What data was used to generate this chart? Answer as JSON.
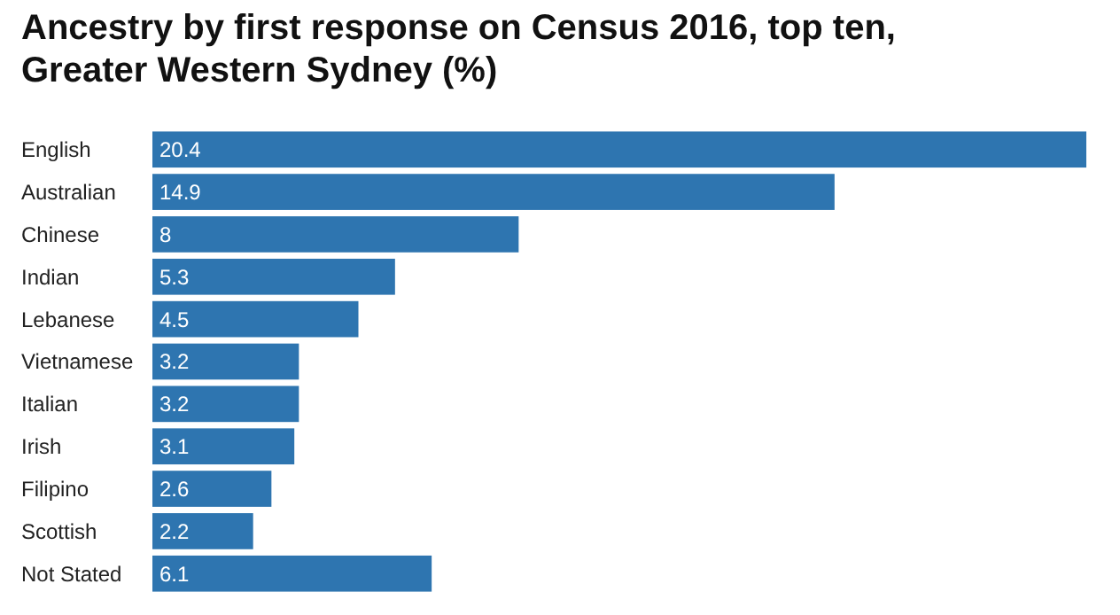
{
  "chart_data": {
    "type": "bar",
    "orientation": "horizontal",
    "title": "Ancestry by first response on Census 2016, top ten, Greater Western Sydney (%)",
    "categories": [
      "English",
      "Australian",
      "Chinese",
      "Indian",
      "Lebanese",
      "Vietnamese",
      "Italian",
      "Irish",
      "Filipino",
      "Scottish",
      "Not Stated"
    ],
    "values": [
      20.4,
      14.9,
      8,
      5.3,
      4.5,
      3.2,
      3.2,
      3.1,
      2.6,
      2.2,
      6.1
    ],
    "color": "#2e75b0",
    "data_labels": true
  }
}
